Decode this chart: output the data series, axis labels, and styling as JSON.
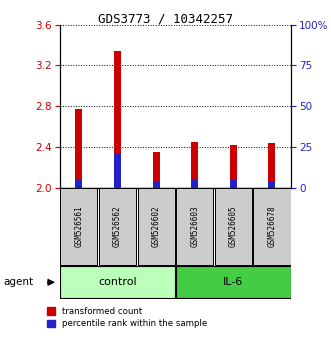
{
  "title": "GDS3773 / 10342257",
  "samples": [
    "GSM526561",
    "GSM526562",
    "GSM526602",
    "GSM526603",
    "GSM526605",
    "GSM526678"
  ],
  "red_values": [
    2.77,
    3.34,
    2.35,
    2.45,
    2.42,
    2.44
  ],
  "blue_values": [
    2.07,
    2.33,
    2.06,
    2.07,
    2.07,
    2.06
  ],
  "red_color": "#cc0000",
  "blue_color": "#2222cc",
  "ylim_left": [
    2.0,
    3.6
  ],
  "yticks_left": [
    2.0,
    2.4,
    2.8,
    3.2,
    3.6
  ],
  "yticks_right": [
    0,
    25,
    50,
    75,
    100
  ],
  "control_label": "control",
  "il6_label": "IL-6",
  "agent_label": "agent",
  "control_color": "#bbffbb",
  "il6_color": "#44cc44",
  "bar_bg_color": "#cccccc",
  "legend_red": "transformed count",
  "legend_blue": "percentile rank within the sample",
  "bar_width": 0.18,
  "left_tick_color": "#cc0000",
  "right_tick_color": "#2222cc"
}
